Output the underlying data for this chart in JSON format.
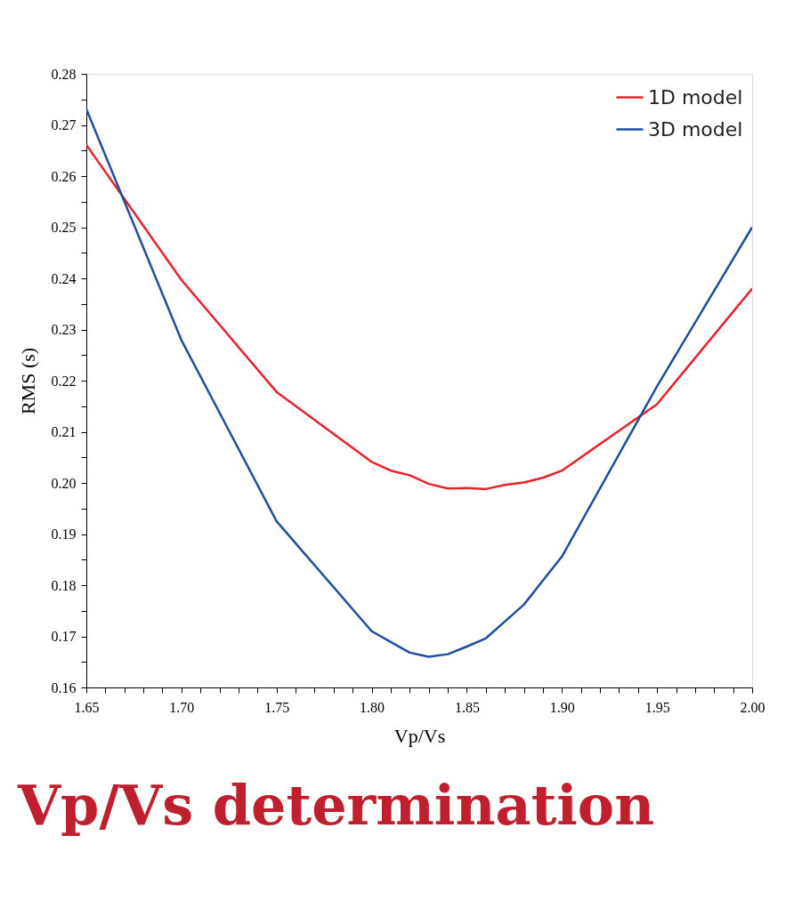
{
  "chart_data": {
    "type": "line",
    "title": "Vp/Vs determination",
    "xlabel": "Vp/Vs",
    "ylabel": "RMS (s)",
    "x": [
      1.65,
      1.7,
      1.75,
      1.8,
      1.81,
      1.82,
      1.83,
      1.84,
      1.85,
      1.86,
      1.87,
      1.88,
      1.89,
      1.9,
      1.95,
      2.0
    ],
    "series": [
      {
        "name": "1D model",
        "color": "#e8202a",
        "values": [
          0.2661,
          0.2397,
          0.2178,
          0.2041,
          0.2024,
          0.2015,
          0.1998,
          0.1989,
          0.199,
          0.1988,
          0.1996,
          0.2001,
          0.201,
          0.2024,
          0.2154,
          0.238
        ]
      },
      {
        "name": "3D model",
        "color": "#1f4ea1",
        "values": [
          0.2731,
          0.2279,
          0.1925,
          0.171,
          0.1689,
          0.1668,
          0.166,
          0.1665,
          0.168,
          0.1696,
          0.1729,
          0.1762,
          0.1809,
          0.1856,
          0.2189,
          0.25
        ]
      }
    ],
    "xlim": [
      1.65,
      2.0
    ],
    "ylim": [
      0.16,
      0.28
    ],
    "xticks": [
      {
        "value": 1.65,
        "label": "1.65"
      },
      {
        "value": 1.66,
        "label": null
      },
      {
        "value": 1.67,
        "label": null
      },
      {
        "value": 1.68,
        "label": null
      },
      {
        "value": 1.69,
        "label": null
      },
      {
        "value": 1.7,
        "label": "1.70"
      },
      {
        "value": 1.71,
        "label": null
      },
      {
        "value": 1.72,
        "label": null
      },
      {
        "value": 1.73,
        "label": null
      },
      {
        "value": 1.74,
        "label": null
      },
      {
        "value": 1.75,
        "label": "1.75"
      },
      {
        "value": 1.76,
        "label": null
      },
      {
        "value": 1.77,
        "label": null
      },
      {
        "value": 1.78,
        "label": null
      },
      {
        "value": 1.79,
        "label": null
      },
      {
        "value": 1.8,
        "label": "1.80"
      },
      {
        "value": 1.81,
        "label": null
      },
      {
        "value": 1.82,
        "label": null
      },
      {
        "value": 1.83,
        "label": null
      },
      {
        "value": 1.84,
        "label": null
      },
      {
        "value": 1.85,
        "label": "1.85"
      },
      {
        "value": 1.86,
        "label": null
      },
      {
        "value": 1.87,
        "label": null
      },
      {
        "value": 1.88,
        "label": null
      },
      {
        "value": 1.89,
        "label": null
      },
      {
        "value": 1.9,
        "label": "1.90"
      },
      {
        "value": 1.91,
        "label": null
      },
      {
        "value": 1.92,
        "label": null
      },
      {
        "value": 1.93,
        "label": null
      },
      {
        "value": 1.94,
        "label": null
      },
      {
        "value": 1.95,
        "label": "1.95"
      },
      {
        "value": 1.96,
        "label": null
      },
      {
        "value": 1.97,
        "label": null
      },
      {
        "value": 1.98,
        "label": null
      },
      {
        "value": 1.99,
        "label": null
      },
      {
        "value": 2.0,
        "label": "2.00"
      }
    ],
    "yticks": [
      {
        "value": 0.16,
        "label": "0.16"
      },
      {
        "value": 0.165,
        "label": null
      },
      {
        "value": 0.17,
        "label": "0.17"
      },
      {
        "value": 0.175,
        "label": null
      },
      {
        "value": 0.18,
        "label": "0.18"
      },
      {
        "value": 0.185,
        "label": null
      },
      {
        "value": 0.19,
        "label": "0.19"
      },
      {
        "value": 0.195,
        "label": null
      },
      {
        "value": 0.2,
        "label": "0.20"
      },
      {
        "value": 0.205,
        "label": null
      },
      {
        "value": 0.21,
        "label": "0.21"
      },
      {
        "value": 0.215,
        "label": null
      },
      {
        "value": 0.22,
        "label": "0.22"
      },
      {
        "value": 0.225,
        "label": null
      },
      {
        "value": 0.23,
        "label": "0.23"
      },
      {
        "value": 0.235,
        "label": null
      },
      {
        "value": 0.24,
        "label": "0.24"
      },
      {
        "value": 0.245,
        "label": null
      },
      {
        "value": 0.25,
        "label": "0.25"
      },
      {
        "value": 0.255,
        "label": null
      },
      {
        "value": 0.26,
        "label": "0.26"
      },
      {
        "value": 0.265,
        "label": null
      },
      {
        "value": 0.27,
        "label": "0.27"
      },
      {
        "value": 0.275,
        "label": null
      },
      {
        "value": 0.28,
        "label": "0.28"
      }
    ],
    "grid": false,
    "legend": "top right",
    "marker": "none",
    "line_style": "solid"
  }
}
